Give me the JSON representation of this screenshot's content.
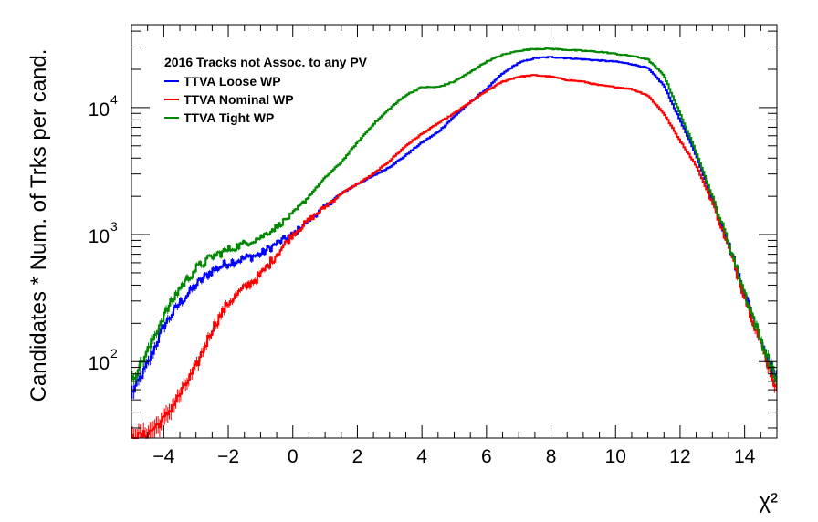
{
  "chart_data": {
    "type": "line",
    "xlabel": "χ²",
    "ylabel": "Candidates * Num. of Trks per cand.",
    "xlim": [
      -5,
      15
    ],
    "ylim": [
      25,
      45000
    ],
    "yscale": "log",
    "grid": false,
    "legend_title": "2016 Tracks not Assoc. to any PV",
    "legend_position": "top-left",
    "x_ticks": [
      "−4",
      "−2",
      "0",
      "2",
      "4",
      "6",
      "8",
      "10",
      "12",
      "14"
    ],
    "x_tick_values": [
      -4,
      -2,
      0,
      2,
      4,
      6,
      8,
      10,
      12,
      14
    ],
    "y_ticks": [
      {
        "value": 100,
        "base": "10",
        "exp": "2"
      },
      {
        "value": 1000,
        "base": "10",
        "exp": "3"
      },
      {
        "value": 10000,
        "base": "10",
        "exp": "4"
      }
    ],
    "x": [
      -5,
      -4.5,
      -4,
      -3.5,
      -3,
      -2.5,
      -2,
      -1.5,
      -1,
      -0.5,
      0,
      0.5,
      1,
      1.5,
      2,
      2.5,
      3,
      3.5,
      4,
      4.5,
      5,
      5.5,
      6,
      6.5,
      7,
      7.5,
      8,
      8.5,
      9,
      9.5,
      10,
      10.5,
      11,
      11.5,
      12,
      12.5,
      13,
      13.5,
      14,
      14.5,
      15
    ],
    "series": [
      {
        "name": "TTVA Loose WP",
        "color": "#0000ff",
        "values": [
          55,
          95,
          190,
          290,
          400,
          520,
          600,
          650,
          700,
          850,
          1000,
          1300,
          1650,
          2100,
          2500,
          2900,
          3400,
          4200,
          5300,
          6400,
          8500,
          11000,
          14000,
          18500,
          22500,
          24500,
          25000,
          24500,
          24000,
          23500,
          23000,
          22000,
          20500,
          15000,
          8000,
          4200,
          1900,
          850,
          350,
          150,
          70
        ]
      },
      {
        "name": "TTVA Nominal WP",
        "color": "#ff0000",
        "values": [
          25,
          27,
          35,
          55,
          90,
          180,
          290,
          380,
          480,
          700,
          1000,
          1300,
          1650,
          2100,
          2500,
          3000,
          3800,
          5000,
          6200,
          7500,
          9000,
          11000,
          13500,
          16000,
          17500,
          18000,
          17500,
          16500,
          16000,
          15000,
          14500,
          14000,
          12500,
          9000,
          5500,
          3500,
          1800,
          800,
          330,
          140,
          60
        ]
      },
      {
        "name": "TTVA Tight WP",
        "color": "#008800",
        "values": [
          70,
          120,
          230,
          380,
          540,
          670,
          760,
          850,
          950,
          1150,
          1450,
          2000,
          2800,
          3700,
          5300,
          7400,
          9800,
          12500,
          14500,
          14500,
          16000,
          19000,
          23000,
          26000,
          28000,
          29000,
          29000,
          28500,
          28000,
          27500,
          26500,
          25500,
          24000,
          18000,
          9000,
          4500,
          2000,
          880,
          350,
          150,
          70
        ]
      }
    ]
  }
}
